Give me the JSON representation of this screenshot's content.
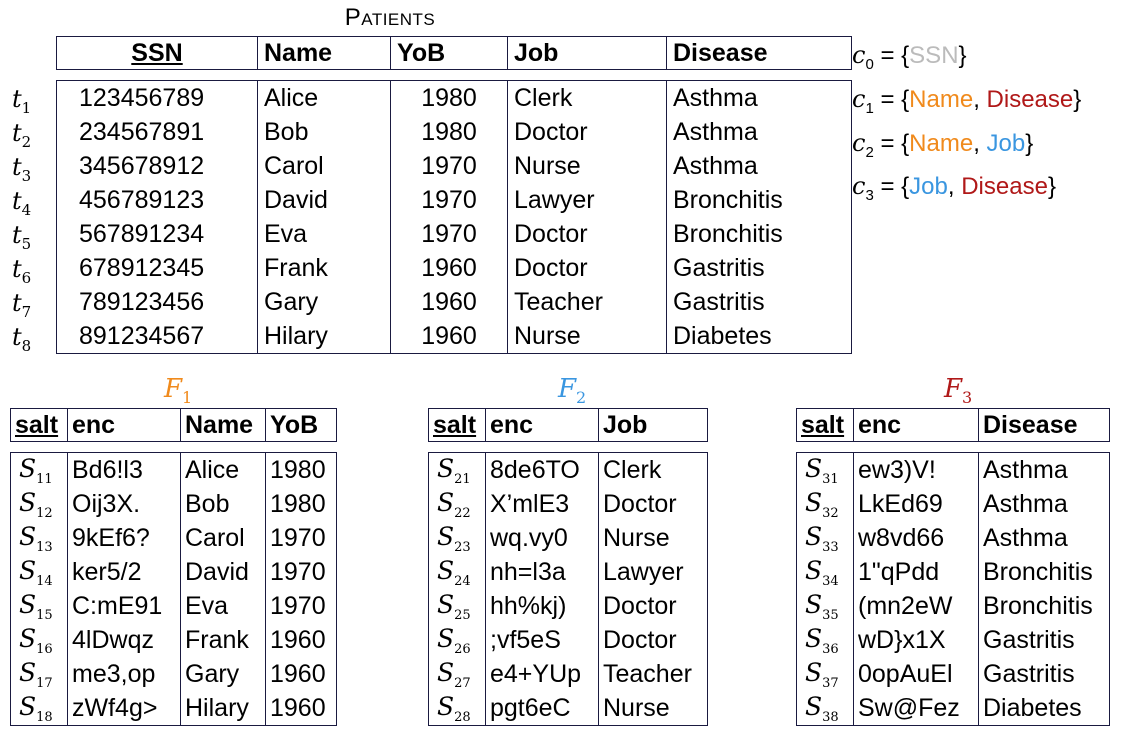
{
  "patients": {
    "caption": "Patients",
    "headers": [
      "SSN",
      "Name",
      "YoB",
      "Job",
      "Disease"
    ],
    "row_labels": [
      "t",
      "t",
      "t",
      "t",
      "t",
      "t",
      "t",
      "t"
    ],
    "row_label_subs": [
      "1",
      "2",
      "3",
      "4",
      "5",
      "6",
      "7",
      "8"
    ],
    "rows": [
      [
        "123456789",
        "Alice",
        "1980",
        "Clerk",
        "Asthma"
      ],
      [
        "234567891",
        "Bob",
        "1980",
        "Doctor",
        "Asthma"
      ],
      [
        "345678912",
        "Carol",
        "1970",
        "Nurse",
        "Asthma"
      ],
      [
        "456789123",
        "David",
        "1970",
        "Lawyer",
        "Bronchitis"
      ],
      [
        "567891234",
        "Eva",
        "1970",
        "Doctor",
        "Bronchitis"
      ],
      [
        "678912345",
        "Frank",
        "1960",
        "Doctor",
        "Gastritis"
      ],
      [
        "789123456",
        "Gary",
        "1960",
        "Teacher",
        "Gastritis"
      ],
      [
        "891234567",
        "Hilary",
        "1960",
        "Nurse",
        "Diabetes"
      ]
    ]
  },
  "constraints": [
    {
      "sym": "c",
      "sub": "0",
      "items": [
        {
          "text": "SSN",
          "color": "#bbbbbb"
        }
      ]
    },
    {
      "sym": "c",
      "sub": "1",
      "items": [
        {
          "text": "Name",
          "color": "#f08a1c"
        },
        {
          "text": "Disease",
          "color": "#b01818"
        }
      ]
    },
    {
      "sym": "c",
      "sub": "2",
      "items": [
        {
          "text": "Name",
          "color": "#f08a1c"
        },
        {
          "text": "Job",
          "color": "#3a96e0"
        }
      ]
    },
    {
      "sym": "c",
      "sub": "3",
      "items": [
        {
          "text": "Job",
          "color": "#3a96e0"
        },
        {
          "text": "Disease",
          "color": "#b01818"
        }
      ]
    }
  ],
  "fragments": [
    {
      "title": "F",
      "title_sub": "1",
      "color": "#f08a1c",
      "headers": [
        "salt",
        "enc",
        "Name",
        "YoB"
      ],
      "salt_sym": "S",
      "salt_subs": [
        "11",
        "12",
        "13",
        "14",
        "15",
        "16",
        "17",
        "18"
      ],
      "rows": [
        [
          "Bd6!l3",
          "Alice",
          "1980"
        ],
        [
          "Oij3X.",
          "Bob",
          "1980"
        ],
        [
          "9kEf6?",
          "Carol",
          "1970"
        ],
        [
          "ker5/2",
          "David",
          "1970"
        ],
        [
          "C:mE91",
          "Eva",
          "1970"
        ],
        [
          "4lDwqz",
          "Frank",
          "1960"
        ],
        [
          "me3,op",
          "Gary",
          "1960"
        ],
        [
          "zWf4g>",
          "Hilary",
          "1960"
        ]
      ]
    },
    {
      "title": "F",
      "title_sub": "2",
      "color": "#3a96e0",
      "headers": [
        "salt",
        "enc",
        "Job"
      ],
      "salt_sym": "S",
      "salt_subs": [
        "21",
        "22",
        "23",
        "24",
        "25",
        "26",
        "27",
        "28"
      ],
      "rows": [
        [
          "8de6TO",
          "Clerk"
        ],
        [
          "X’mlE3",
          "Doctor"
        ],
        [
          "wq.vy0",
          "Nurse"
        ],
        [
          "nh=l3a",
          "Lawyer"
        ],
        [
          "hh%kj)",
          "Doctor"
        ],
        [
          ";vf5eS",
          "Doctor"
        ],
        [
          "e4+YUp",
          "Teacher"
        ],
        [
          "pgt6eC",
          "Nurse"
        ]
      ]
    },
    {
      "title": "F",
      "title_sub": "3",
      "color": "#b01818",
      "headers": [
        "salt",
        "enc",
        "Disease"
      ],
      "salt_sym": "S",
      "salt_subs": [
        "31",
        "32",
        "33",
        "34",
        "35",
        "36",
        "37",
        "38"
      ],
      "rows": [
        [
          "ew3)V!",
          "Asthma"
        ],
        [
          "LkEd69",
          "Asthma"
        ],
        [
          "w8vd66",
          "Asthma"
        ],
        [
          "1\"qPdd",
          "Bronchitis"
        ],
        [
          "(mn2eW",
          "Bronchitis"
        ],
        [
          "wD}x1X",
          "Gastritis"
        ],
        [
          "0opAuEl",
          "Gastritis"
        ],
        [
          "Sw@Fez",
          "Diabetes"
        ]
      ]
    }
  ]
}
